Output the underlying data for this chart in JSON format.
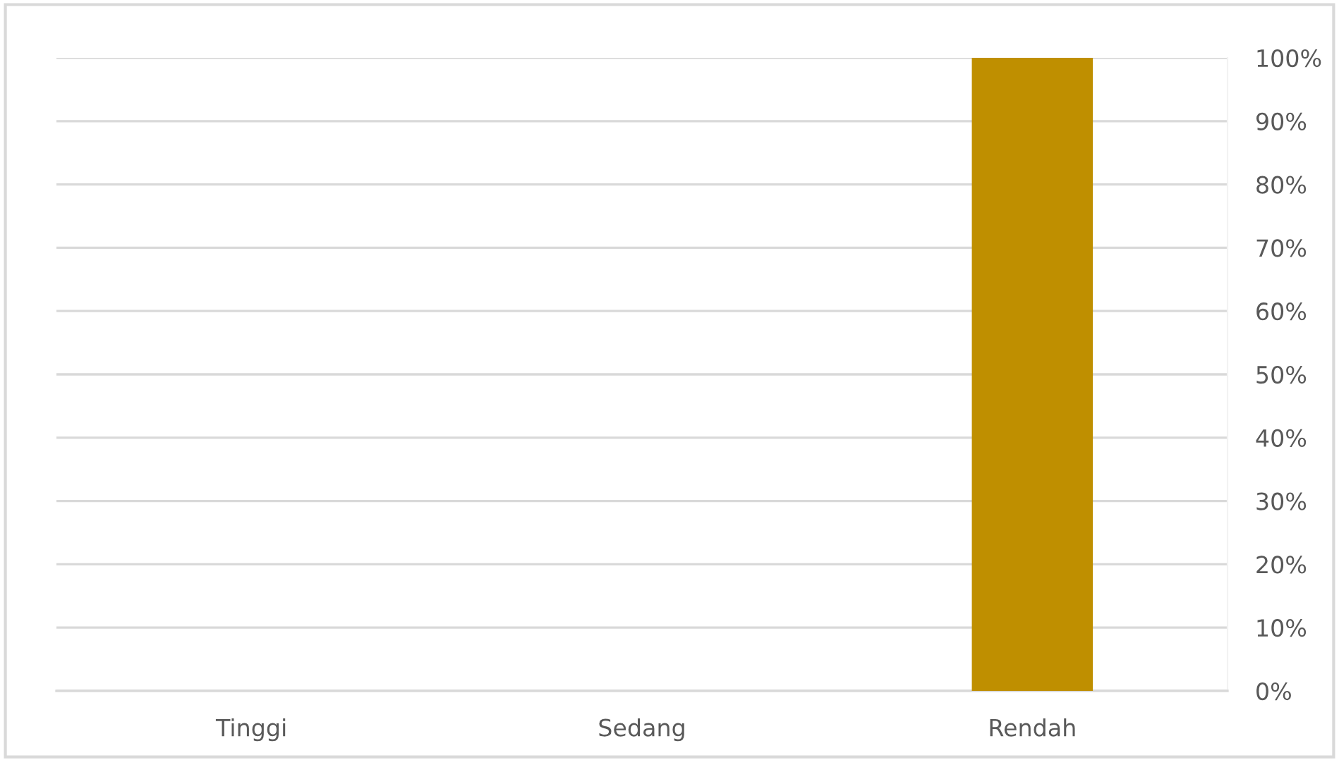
{
  "chart_data": {
    "type": "bar",
    "categories": [
      "Tinggi",
      "Sedang",
      "Rendah"
    ],
    "values": [
      0,
      0,
      100
    ],
    "color": "#bf8f00",
    "ylim": [
      0,
      100
    ],
    "yticks": [
      {
        "value": 0,
        "label": "0%"
      },
      {
        "value": 10,
        "label": "10%"
      },
      {
        "value": 20,
        "label": "20%"
      },
      {
        "value": 30,
        "label": "30%"
      },
      {
        "value": 40,
        "label": "40%"
      },
      {
        "value": 50,
        "label": "50%"
      },
      {
        "value": 60,
        "label": "60%"
      },
      {
        "value": 70,
        "label": "70%"
      },
      {
        "value": 80,
        "label": "80%"
      },
      {
        "value": 90,
        "label": "90%"
      },
      {
        "value": 100,
        "label": "100%"
      }
    ],
    "grid": "y"
  }
}
